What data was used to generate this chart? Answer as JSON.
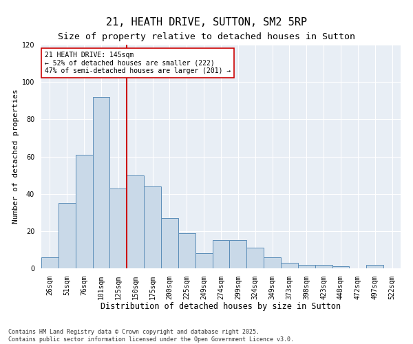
{
  "title": "21, HEATH DRIVE, SUTTON, SM2 5RP",
  "subtitle": "Size of property relative to detached houses in Sutton",
  "xlabel": "Distribution of detached houses by size in Sutton",
  "ylabel": "Number of detached properties",
  "categories": [
    "26sqm",
    "51sqm",
    "76sqm",
    "101sqm",
    "125sqm",
    "150sqm",
    "175sqm",
    "200sqm",
    "225sqm",
    "249sqm",
    "274sqm",
    "299sqm",
    "324sqm",
    "349sqm",
    "373sqm",
    "398sqm",
    "423sqm",
    "448sqm",
    "472sqm",
    "497sqm",
    "522sqm"
  ],
  "values": [
    6,
    35,
    61,
    92,
    43,
    50,
    44,
    27,
    19,
    8,
    15,
    15,
    11,
    6,
    3,
    2,
    2,
    1,
    0,
    2,
    0
  ],
  "bar_color": "#c9d9e8",
  "bar_edge_color": "#5b8db8",
  "vline_x": 4.5,
  "vline_color": "#cc0000",
  "annotation_text": "21 HEATH DRIVE: 145sqm\n← 52% of detached houses are smaller (222)\n47% of semi-detached houses are larger (201) →",
  "annotation_box_color": "#cc0000",
  "ylim": [
    0,
    120
  ],
  "yticks": [
    0,
    20,
    40,
    60,
    80,
    100,
    120
  ],
  "background_color": "#e8eef5",
  "footer_line1": "Contains HM Land Registry data © Crown copyright and database right 2025.",
  "footer_line2": "Contains public sector information licensed under the Open Government Licence v3.0.",
  "title_fontsize": 11,
  "subtitle_fontsize": 9.5,
  "xlabel_fontsize": 8.5,
  "ylabel_fontsize": 8,
  "tick_fontsize": 7,
  "annotation_fontsize": 7,
  "footer_fontsize": 6
}
